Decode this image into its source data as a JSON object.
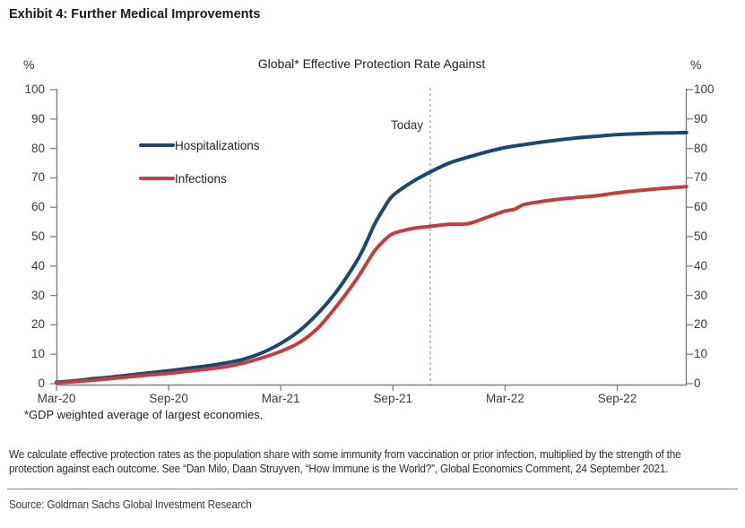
{
  "exhibit": {
    "title": "Exhibit 4: Further Medical Improvements"
  },
  "chart": {
    "title": "Global* Effective Protection Rate Against",
    "left_axis_unit": "%",
    "right_axis_unit": "%",
    "today_label": "Today",
    "footnote": "*GDP weighted average of largest economies.",
    "legend": [
      {
        "label": "Hospitalizations"
      },
      {
        "label": "Infections"
      }
    ]
  },
  "chart_data": {
    "type": "line",
    "title": "Global* Effective Protection Rate Against",
    "xlabel": "",
    "ylabel": "%",
    "ylim": [
      0,
      100
    ],
    "y_ticks": [
      0,
      10,
      20,
      30,
      40,
      50,
      60,
      70,
      80,
      90,
      100
    ],
    "x_unit": "months since Mar-2020",
    "xlim_months": [
      0,
      33.7
    ],
    "x_tick_months": [
      0,
      6,
      12,
      18,
      24,
      30
    ],
    "x_tick_labels": [
      "Mar-20",
      "Sep-20",
      "Mar-21",
      "Sep-21",
      "Mar-22",
      "Sep-22"
    ],
    "grid": false,
    "legend_position": "upper-left-inside",
    "today_month": 20,
    "axis_color": "#808080",
    "dashed_line_color": "#999999",
    "series": [
      {
        "name": "Hospitalizations",
        "color": "#1c4770",
        "points": [
          [
            0,
            0.5
          ],
          [
            1,
            1.0
          ],
          [
            2,
            1.7
          ],
          [
            3,
            2.3
          ],
          [
            4,
            3.0
          ],
          [
            5,
            3.7
          ],
          [
            6,
            4.4
          ],
          [
            7,
            5.2
          ],
          [
            8,
            6.0
          ],
          [
            9,
            7.0
          ],
          [
            10,
            8.3
          ],
          [
            11,
            10.5
          ],
          [
            12,
            13.7
          ],
          [
            13,
            18.0
          ],
          [
            14,
            24.0
          ],
          [
            15,
            31.5
          ],
          [
            16,
            41.0
          ],
          [
            16.5,
            47.0
          ],
          [
            17,
            54.0
          ],
          [
            17.5,
            59.5
          ],
          [
            18,
            64.0
          ],
          [
            19,
            68.5
          ],
          [
            20,
            72.0
          ],
          [
            21,
            75.0
          ],
          [
            22,
            77.0
          ],
          [
            23,
            78.8
          ],
          [
            24,
            80.3
          ],
          [
            25,
            81.3
          ],
          [
            26,
            82.2
          ],
          [
            27,
            83.0
          ],
          [
            28,
            83.7
          ],
          [
            29,
            84.2
          ],
          [
            30,
            84.7
          ],
          [
            31,
            85.0
          ],
          [
            32,
            85.2
          ],
          [
            33,
            85.3
          ],
          [
            33.7,
            85.4
          ]
        ]
      },
      {
        "name": "Infections",
        "color": "#c23e41",
        "points": [
          [
            0,
            0.3
          ],
          [
            1,
            0.7
          ],
          [
            2,
            1.2
          ],
          [
            3,
            1.8
          ],
          [
            4,
            2.4
          ],
          [
            5,
            3.0
          ],
          [
            6,
            3.5
          ],
          [
            7,
            4.2
          ],
          [
            8,
            4.9
          ],
          [
            9,
            5.7
          ],
          [
            10,
            7.0
          ],
          [
            11,
            8.8
          ],
          [
            12,
            11.0
          ],
          [
            13,
            14.0
          ],
          [
            14,
            19.0
          ],
          [
            15,
            26.5
          ],
          [
            16,
            35.0
          ],
          [
            16.5,
            40.0
          ],
          [
            17,
            45.0
          ],
          [
            17.5,
            48.5
          ],
          [
            18,
            51.0
          ],
          [
            19,
            52.7
          ],
          [
            20,
            53.5
          ],
          [
            21,
            54.2
          ],
          [
            22,
            54.4
          ],
          [
            23,
            56.5
          ],
          [
            24,
            58.7
          ],
          [
            24.5,
            59.3
          ],
          [
            25,
            60.9
          ],
          [
            26,
            62.0
          ],
          [
            27,
            62.8
          ],
          [
            28,
            63.4
          ],
          [
            29,
            64.0
          ],
          [
            30,
            64.9
          ],
          [
            31,
            65.6
          ],
          [
            32,
            66.2
          ],
          [
            33,
            66.7
          ],
          [
            33.7,
            67.0
          ]
        ]
      }
    ]
  },
  "notes": {
    "line1": "We calculate effective protection rates as the population share with some immunity from vaccination or prior infection, multiplied by the strength of the",
    "line2": "protection against each outcome. See “Dan Milo, Daan Struyven, “How Immune is the World?”, Global Economics Comment, 24 September 2021.",
    "source": "Source: Goldman Sachs Global Investment Research"
  }
}
